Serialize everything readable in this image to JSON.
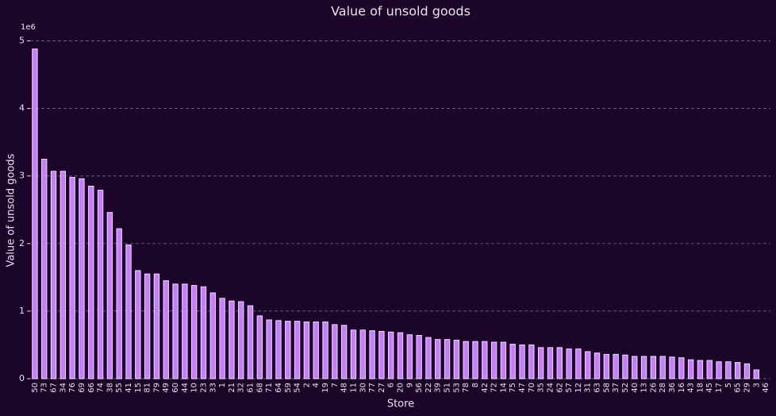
{
  "chart_data": {
    "type": "bar",
    "title": "Value of unsold goods",
    "x_label": "Store",
    "y_label": "Value of unsold goods",
    "y_offset_label": "1e6",
    "categories": [
      "50",
      "73",
      "67",
      "34",
      "76",
      "69",
      "66",
      "74",
      "38",
      "55",
      "41",
      "15",
      "81",
      "79",
      "49",
      "60",
      "44",
      "10",
      "23",
      "33",
      "1",
      "21",
      "32",
      "61",
      "68",
      "71",
      "64",
      "59",
      "54",
      "2",
      "4",
      "19",
      "7",
      "48",
      "11",
      "30",
      "77",
      "27",
      "6",
      "20",
      "9",
      "56",
      "22",
      "39",
      "51",
      "53",
      "78",
      "8",
      "42",
      "72",
      "14",
      "75",
      "47",
      "70",
      "35",
      "24",
      "62",
      "57",
      "12",
      "31",
      "63",
      "58",
      "37",
      "52",
      "40",
      "13",
      "26",
      "28",
      "36",
      "16",
      "43",
      "18",
      "45",
      "17",
      "5",
      "65",
      "29",
      "3",
      "46"
    ],
    "values": [
      4.88,
      3.25,
      3.07,
      3.07,
      2.98,
      2.96,
      2.85,
      2.79,
      2.46,
      2.22,
      1.98,
      1.6,
      1.55,
      1.55,
      1.45,
      1.4,
      1.4,
      1.38,
      1.36,
      1.27,
      1.19,
      1.15,
      1.14,
      1.08,
      0.93,
      0.87,
      0.86,
      0.85,
      0.85,
      0.84,
      0.84,
      0.84,
      0.8,
      0.79,
      0.72,
      0.72,
      0.71,
      0.7,
      0.69,
      0.68,
      0.65,
      0.64,
      0.61,
      0.58,
      0.58,
      0.57,
      0.55,
      0.55,
      0.55,
      0.54,
      0.54,
      0.51,
      0.5,
      0.5,
      0.46,
      0.46,
      0.46,
      0.44,
      0.44,
      0.4,
      0.38,
      0.36,
      0.36,
      0.35,
      0.33,
      0.33,
      0.33,
      0.33,
      0.32,
      0.31,
      0.28,
      0.27,
      0.27,
      0.25,
      0.25,
      0.24,
      0.22,
      0.13,
      0
    ],
    "color": "#c77dff",
    "edge_color": "#f0d8ff",
    "ylim": [
      0,
      5.3
    ],
    "yticks": [
      0,
      1,
      2,
      3,
      4,
      5
    ],
    "grid": true
  }
}
